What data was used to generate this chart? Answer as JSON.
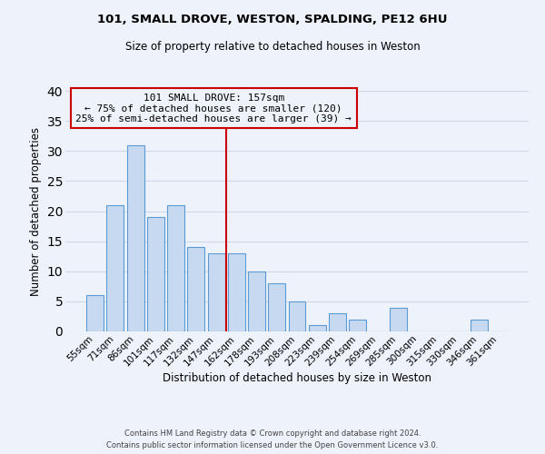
{
  "title": "101, SMALL DROVE, WESTON, SPALDING, PE12 6HU",
  "subtitle": "Size of property relative to detached houses in Weston",
  "xlabel": "Distribution of detached houses by size in Weston",
  "ylabel": "Number of detached properties",
  "bar_labels": [
    "55sqm",
    "71sqm",
    "86sqm",
    "101sqm",
    "117sqm",
    "132sqm",
    "147sqm",
    "162sqm",
    "178sqm",
    "193sqm",
    "208sqm",
    "223sqm",
    "239sqm",
    "254sqm",
    "269sqm",
    "285sqm",
    "300sqm",
    "315sqm",
    "330sqm",
    "346sqm",
    "361sqm"
  ],
  "bar_values": [
    6,
    21,
    31,
    19,
    21,
    14,
    13,
    13,
    10,
    8,
    5,
    1,
    3,
    2,
    0,
    4,
    0,
    0,
    0,
    2,
    0
  ],
  "bar_color": "#c6d9f0",
  "bar_edge_color": "#5b9bd5",
  "grid_color": "#d0d8e8",
  "background_color": "#eef2fa",
  "vline_color": "#cc0000",
  "annotation_text": "101 SMALL DROVE: 157sqm\n← 75% of detached houses are smaller (120)\n25% of semi-detached houses are larger (39) →",
  "annotation_box_edge": "#cc0000",
  "ylim": [
    0,
    40
  ],
  "yticks": [
    0,
    5,
    10,
    15,
    20,
    25,
    30,
    35,
    40
  ],
  "footer1": "Contains HM Land Registry data © Crown copyright and database right 2024.",
  "footer2": "Contains public sector information licensed under the Open Government Licence v3.0."
}
